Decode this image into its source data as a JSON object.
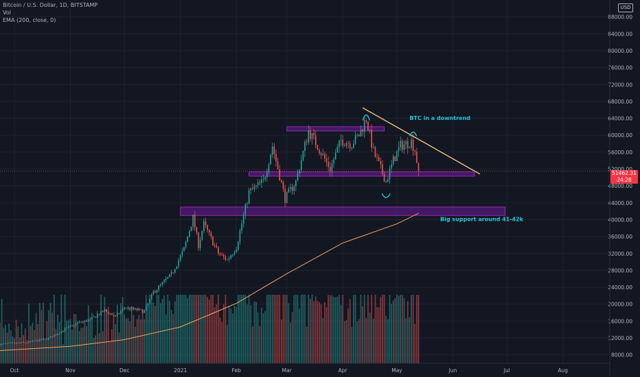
{
  "header": {
    "symbol_line": "Bitcoin / U.S. Dollar, 1D, BITSTAMP",
    "vol_label": "Vol",
    "ema_label": "EMA (200, close, 0)",
    "currency": "USD"
  },
  "price_tag": {
    "price": "51462.31",
    "countdown": "24:28",
    "color": "#f23645"
  },
  "colors": {
    "background": "#131722",
    "up": "#26a69a",
    "down": "#ef5350",
    "ema": "#f4a460",
    "trendline": "#ffd180",
    "zone_fill": "#6a1b9a",
    "zone_border": "#9c27b0",
    "annotation": "#26c6da",
    "curve": "#26c6da"
  },
  "chart_data": {
    "type": "candlestick",
    "y_axis": {
      "min": 6000,
      "max": 92000,
      "ticks": [
        "8000.00",
        "12000.00",
        "16000.00",
        "20000.00",
        "24000.00",
        "28000.00",
        "32000.00",
        "36000.00",
        "40000.00",
        "44000.00",
        "48000.00",
        "52000.00",
        "56000.00",
        "60000.00",
        "64000.00",
        "68000.00",
        "72000.00",
        "76000.00",
        "80000.00",
        "84000.00",
        "88000.00"
      ]
    },
    "x_axis": {
      "range": [
        "2020-09-23",
        "2021-08-27"
      ],
      "ticks": [
        {
          "date": "2020-10-01",
          "label": "Oct"
        },
        {
          "date": "2020-11-01",
          "label": "Nov"
        },
        {
          "date": "2020-12-01",
          "label": "Dec"
        },
        {
          "date": "2021-01-01",
          "label": "2021"
        },
        {
          "date": "2021-02-01",
          "label": "Feb"
        },
        {
          "date": "2021-03-01",
          "label": "Mar"
        },
        {
          "date": "2021-04-01",
          "label": "Apr"
        },
        {
          "date": "2021-05-01",
          "label": "May"
        },
        {
          "date": "2021-06-01",
          "label": "Jun"
        },
        {
          "date": "2021-07-01",
          "label": "Jul"
        },
        {
          "date": "2021-08-01",
          "label": "Aug"
        }
      ]
    },
    "price_path": [
      [
        "2020-09-23",
        10500
      ],
      [
        "2020-10-08",
        10900
      ],
      [
        "2020-10-20",
        11900
      ],
      [
        "2020-10-27",
        13600
      ],
      [
        "2020-11-05",
        15500
      ],
      [
        "2020-11-12",
        16300
      ],
      [
        "2020-11-20",
        18500
      ],
      [
        "2020-11-26",
        17000
      ],
      [
        "2020-12-01",
        19200
      ],
      [
        "2020-12-12",
        18300
      ],
      [
        "2020-12-17",
        22800
      ],
      [
        "2020-12-27",
        27000
      ],
      [
        "2021-01-03",
        33000
      ],
      [
        "2021-01-08",
        40500
      ],
      [
        "2021-01-11",
        34000
      ],
      [
        "2021-01-14",
        39000
      ],
      [
        "2021-01-22",
        32000
      ],
      [
        "2021-01-27",
        30500
      ],
      [
        "2021-02-01",
        33500
      ],
      [
        "2021-02-08",
        46500
      ],
      [
        "2021-02-16",
        49000
      ],
      [
        "2021-02-21",
        57500
      ],
      [
        "2021-02-28",
        45000
      ],
      [
        "2021-03-06",
        49000
      ],
      [
        "2021-03-13",
        61000
      ],
      [
        "2021-03-18",
        57500
      ],
      [
        "2021-03-25",
        52000
      ],
      [
        "2021-03-31",
        58800
      ],
      [
        "2021-04-06",
        58000
      ],
      [
        "2021-04-10",
        60000
      ],
      [
        "2021-04-14",
        64000
      ],
      [
        "2021-04-18",
        56000
      ],
      [
        "2021-04-25",
        49000
      ],
      [
        "2021-04-29",
        54000
      ],
      [
        "2021-05-03",
        57500
      ],
      [
        "2021-05-09",
        58500
      ],
      [
        "2021-05-11",
        56500
      ],
      [
        "2021-05-13",
        51462
      ]
    ],
    "volume_max": 55000,
    "ema200_path": [
      [
        "2020-09-23",
        9000
      ],
      [
        "2020-11-01",
        10000
      ],
      [
        "2020-12-01",
        11600
      ],
      [
        "2021-01-01",
        14600
      ],
      [
        "2021-02-01",
        20200
      ],
      [
        "2021-03-01",
        27200
      ],
      [
        "2021-04-01",
        34500
      ],
      [
        "2021-05-01",
        39000
      ],
      [
        "2021-05-13",
        41500
      ]
    ],
    "zones": [
      {
        "from": "2021-03-01",
        "to": "2021-04-24",
        "low": 61000,
        "high": 62000
      },
      {
        "from": "2021-02-08",
        "to": "2021-06-13",
        "low": 50300,
        "high": 51300
      },
      {
        "from": "2021-01-01",
        "to": "2021-06-30",
        "low": 41000,
        "high": 43000
      }
    ],
    "trendline": {
      "from": [
        "2021-04-12",
        66500
      ],
      "to": [
        "2021-06-16",
        50800
      ]
    },
    "annotations": [
      {
        "text": "BTC in a downtrend",
        "date": "2021-05-08",
        "price": 63600
      },
      {
        "text": "Big support around 41-42k",
        "date": "2021-05-25",
        "price": 39700
      }
    ],
    "current_price": 51462.31
  }
}
